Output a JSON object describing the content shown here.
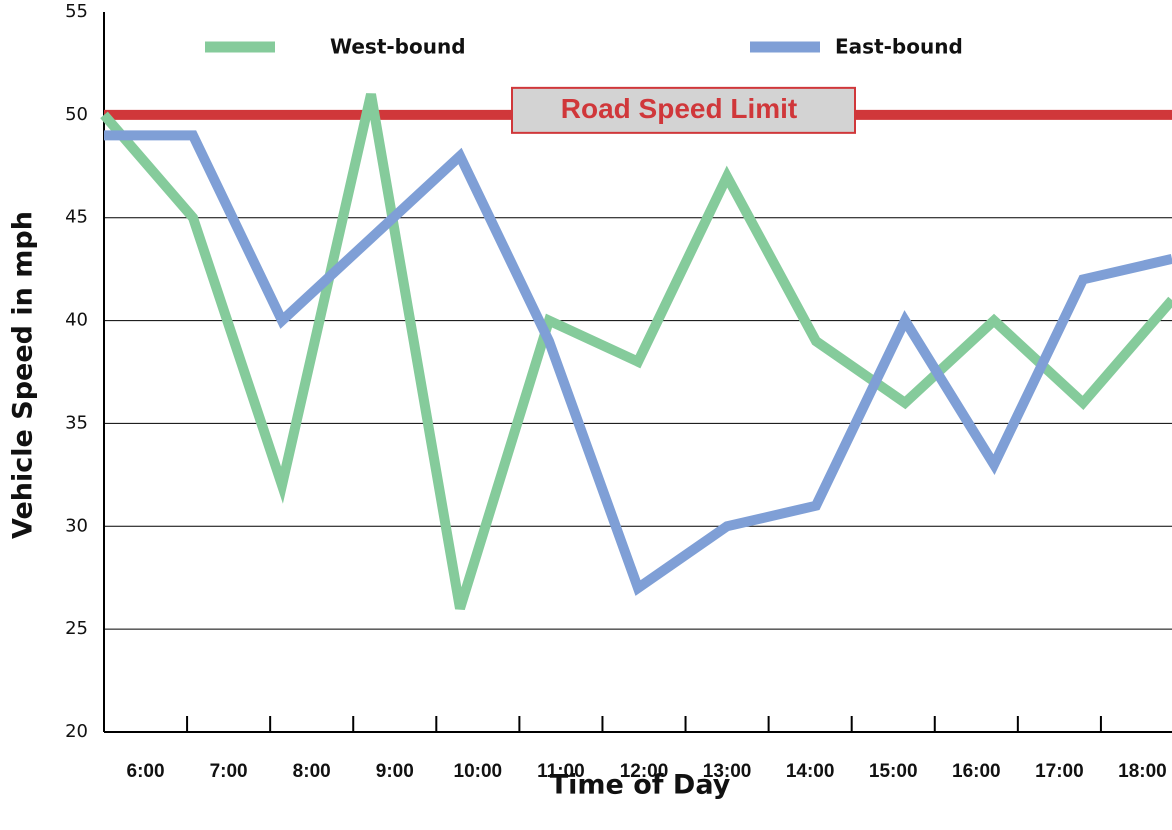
{
  "chart_data": {
    "type": "line",
    "x_label": "Time of Day",
    "y_label": "Vehicle Speed  in mph",
    "categories": [
      "6:00",
      "7:00",
      "8:00",
      "9:00",
      "10:00",
      "11:00",
      "12:00",
      "13:00",
      "14:00",
      "15:00",
      "16:00",
      "17:00",
      "18:00"
    ],
    "series": [
      {
        "name": "West-bound",
        "color": "#85cb9b",
        "values": [
          50,
          45,
          32,
          51,
          26,
          40,
          38,
          47,
          39,
          36,
          40,
          36,
          41
        ]
      },
      {
        "name": "East-bound",
        "color": "#7f9fd6",
        "values": [
          49,
          49,
          40,
          44,
          48,
          39,
          27,
          30,
          31,
          40,
          33,
          42,
          43
        ]
      }
    ],
    "reference_line": {
      "value": 50,
      "label": "Road Speed Limit",
      "color": "#d0373a"
    },
    "ylim": [
      20,
      55
    ],
    "yticks": [
      20,
      25,
      30,
      35,
      40,
      45,
      50,
      55
    ],
    "grid": true
  }
}
